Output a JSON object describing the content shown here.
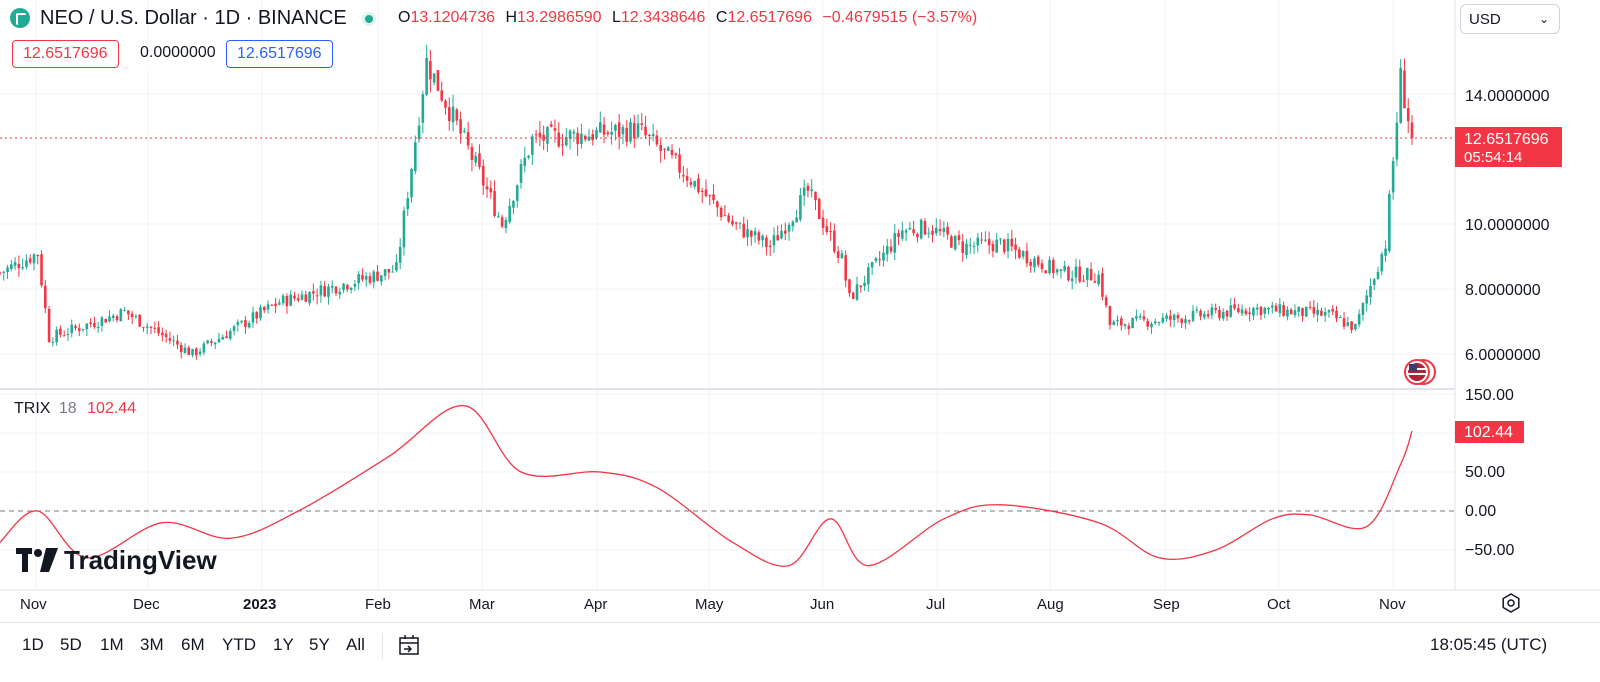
{
  "header": {
    "symbol_title": "NEO / U.S. Dollar · 1D · BINANCE",
    "ohlc": [
      {
        "key": "O",
        "value": "13.1204736"
      },
      {
        "key": "H",
        "value": "13.2986590"
      },
      {
        "key": "L",
        "value": "12.3438646"
      },
      {
        "key": "C",
        "value": "12.6517696"
      }
    ],
    "change": "−0.4679515 (−3.57%)",
    "value_boxes": {
      "sell": "12.6517696",
      "spread": "0.0000000",
      "buy": "12.6517696"
    },
    "currency": "USD"
  },
  "price_axis": {
    "ticks": [
      "14.0000000",
      "10.0000000",
      "8.0000000",
      "6.0000000"
    ],
    "last_price": "12.6517696",
    "countdown": "05:54:14"
  },
  "trix": {
    "name": "TRIX",
    "length": "18",
    "value": "102.44",
    "ticks": [
      "150.00",
      "50.00",
      "0.00",
      "−50.00"
    ]
  },
  "time_axis": [
    "Nov",
    "Dec",
    "2023",
    "Feb",
    "Mar",
    "Apr",
    "May",
    "Jun",
    "Jul",
    "Aug",
    "Sep",
    "Oct",
    "Nov"
  ],
  "brand": "TradingView",
  "bottom_bar": {
    "ranges": [
      "1D",
      "5D",
      "1M",
      "3M",
      "6M",
      "YTD",
      "1Y",
      "5Y",
      "All"
    ],
    "clock": "18:05:45 (UTC)"
  },
  "colors": {
    "up": "#22ab94",
    "down": "#f23645",
    "trix_line": "#f23645",
    "accent_blue": "#2962ff"
  },
  "icons": [
    "logo-icon",
    "status-icon",
    "chevron-down-icon",
    "flag-icon",
    "settings-icon",
    "date-range-icon"
  ],
  "chart_data": {
    "type": "candlestick",
    "symbol": "NEO/USD",
    "interval": "1D",
    "price_range": [
      5.5,
      15.5
    ],
    "trend_points": [
      {
        "date": "2022-10-28",
        "price": 8.5
      },
      {
        "date": "2022-11-07",
        "price": 9.1
      },
      {
        "date": "2022-11-10",
        "price": 6.5
      },
      {
        "date": "2022-11-30",
        "price": 7.3
      },
      {
        "date": "2022-12-18",
        "price": 6.0
      },
      {
        "date": "2023-01-10",
        "price": 7.6
      },
      {
        "date": "2023-02-10",
        "price": 8.6
      },
      {
        "date": "2023-02-18",
        "price": 15.0
      },
      {
        "date": "2023-03-03",
        "price": 11.8
      },
      {
        "date": "2023-03-10",
        "price": 10.0
      },
      {
        "date": "2023-03-18",
        "price": 12.6
      },
      {
        "date": "2023-04-15",
        "price": 12.9
      },
      {
        "date": "2023-04-28",
        "price": 11.5
      },
      {
        "date": "2023-05-10",
        "price": 10.0
      },
      {
        "date": "2023-05-20",
        "price": 9.3
      },
      {
        "date": "2023-05-30",
        "price": 11.0
      },
      {
        "date": "2023-06-08",
        "price": 8.9
      },
      {
        "date": "2023-06-10",
        "price": 7.7
      },
      {
        "date": "2023-06-24",
        "price": 9.8
      },
      {
        "date": "2023-07-01",
        "price": 9.9
      },
      {
        "date": "2023-07-10",
        "price": 9.3
      },
      {
        "date": "2023-07-20",
        "price": 9.4
      },
      {
        "date": "2023-08-05",
        "price": 8.5
      },
      {
        "date": "2023-08-15",
        "price": 8.4
      },
      {
        "date": "2023-08-18",
        "price": 6.9
      },
      {
        "date": "2023-09-05",
        "price": 7.1
      },
      {
        "date": "2023-09-25",
        "price": 7.4
      },
      {
        "date": "2023-10-15",
        "price": 7.2
      },
      {
        "date": "2023-10-22",
        "price": 6.8
      },
      {
        "date": "2023-10-30",
        "price": 9.4
      },
      {
        "date": "2023-11-03",
        "price": 14.5
      },
      {
        "date": "2023-11-06",
        "price": 12.65
      }
    ],
    "last_close": 12.6517696,
    "trix": {
      "length": 18,
      "range": [
        -70,
        155
      ],
      "zero_line": 0,
      "points": [
        {
          "date": "2022-10-28",
          "value": -40
        },
        {
          "date": "2022-11-07",
          "value": 0
        },
        {
          "date": "2022-11-20",
          "value": -60
        },
        {
          "date": "2022-12-10",
          "value": -15
        },
        {
          "date": "2022-12-28",
          "value": -35
        },
        {
          "date": "2023-01-15",
          "value": 0
        },
        {
          "date": "2023-02-08",
          "value": 70
        },
        {
          "date": "2023-02-28",
          "value": 135
        },
        {
          "date": "2023-03-15",
          "value": 50
        },
        {
          "date": "2023-04-05",
          "value": 50
        },
        {
          "date": "2023-04-20",
          "value": 30
        },
        {
          "date": "2023-05-10",
          "value": -40
        },
        {
          "date": "2023-05-25",
          "value": -70
        },
        {
          "date": "2023-06-05",
          "value": -10
        },
        {
          "date": "2023-06-15",
          "value": -70
        },
        {
          "date": "2023-07-05",
          "value": -10
        },
        {
          "date": "2023-07-20",
          "value": 8
        },
        {
          "date": "2023-08-15",
          "value": -15
        },
        {
          "date": "2023-08-31",
          "value": -60
        },
        {
          "date": "2023-09-15",
          "value": -50
        },
        {
          "date": "2023-09-30",
          "value": -10
        },
        {
          "date": "2023-10-10",
          "value": -5
        },
        {
          "date": "2023-10-25",
          "value": -20
        },
        {
          "date": "2023-11-03",
          "value": 60
        },
        {
          "date": "2023-11-06",
          "value": 102.44
        }
      ]
    }
  }
}
